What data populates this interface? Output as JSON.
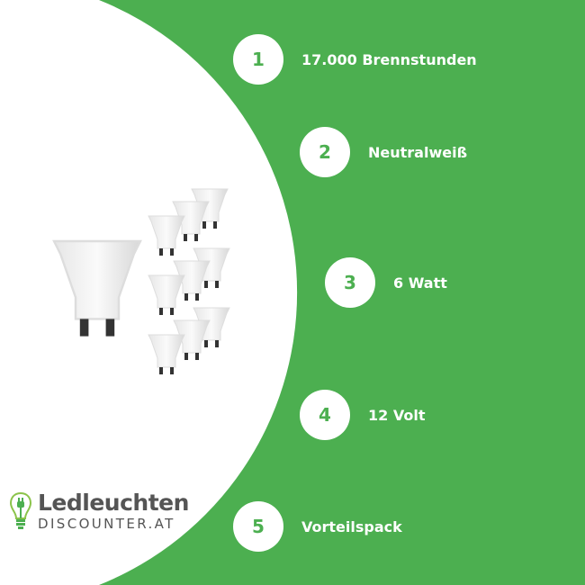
{
  "brand": {
    "name_line1": "Ledleuchten",
    "name_line2": "DISCOUNTER.AT"
  },
  "colors": {
    "green": "#4caf50",
    "white": "#ffffff",
    "logo_gray": "#555555"
  },
  "features": [
    {
      "number": "1",
      "label": "17.000 Brennstunden"
    },
    {
      "number": "2",
      "label": "Neutralweiß"
    },
    {
      "number": "3",
      "label": "6 Watt"
    },
    {
      "number": "4",
      "label": "12 Volt"
    },
    {
      "number": "5",
      "label": "Vorteilspack"
    }
  ]
}
